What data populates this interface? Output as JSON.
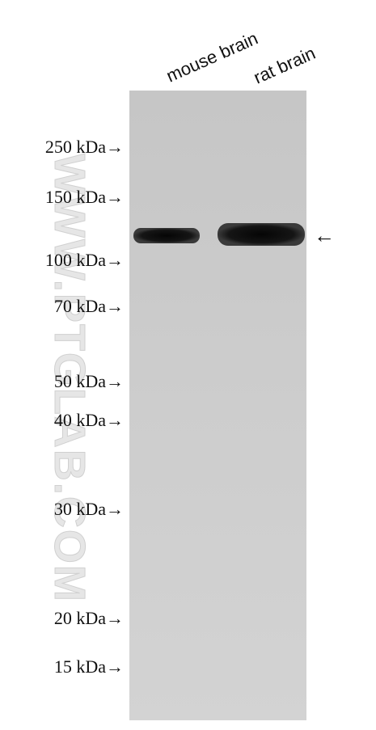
{
  "lanes": [
    "mouse brain",
    "rat brain"
  ],
  "markers": [
    "250 kDa→",
    "150 kDa→",
    "100 kDa→",
    "70 kDa→",
    "50 kDa→",
    "40 kDa→",
    "30 kDa→",
    "20 kDa→",
    "15 kDa→"
  ],
  "band_arrow": "←",
  "watermark": "WWW.PTGLAB.COM"
}
